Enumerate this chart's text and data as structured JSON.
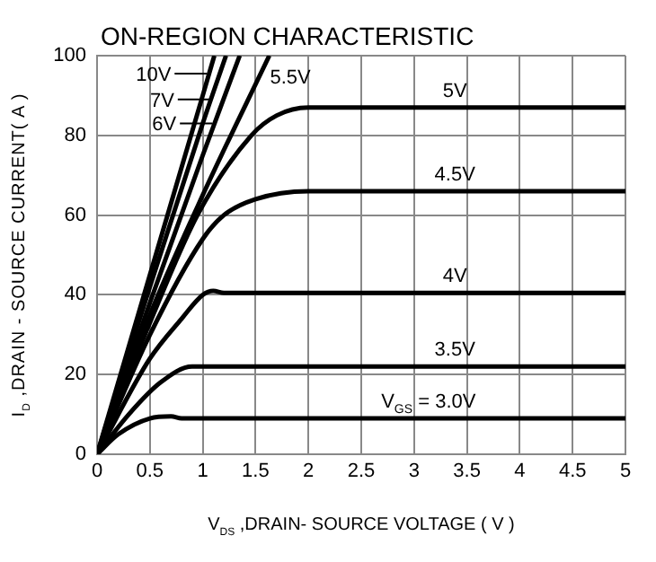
{
  "chart_data": {
    "type": "line",
    "title": "ON-REGION CHARACTERISTIC",
    "xlabel": "V$_{DS}$ ,DRAIN- SOURCE VOLTAGE ( V )",
    "ylabel": "I$_{D}$ ,DRAIN - SOURCE CURRENT( A )",
    "xlim": [
      0,
      5
    ],
    "xticks": [
      0,
      0.5,
      1,
      1.5,
      2,
      2.5,
      3,
      3.5,
      4,
      4.5,
      5
    ],
    "ylim": [
      0,
      100
    ],
    "yticks": [
      0,
      20,
      40,
      60,
      80,
      100
    ],
    "grid": true,
    "legend": false,
    "marker": "none",
    "line_style": "solid",
    "series": [
      {
        "color": "#000000",
        "x": [
          0,
          0.5,
          1,
          1.11
        ],
        "values": [
          0,
          45,
          90,
          100
        ]
      },
      {
        "color": "#000000",
        "x": [
          0,
          0.5,
          1,
          1.22
        ],
        "values": [
          0,
          42,
          83,
          100
        ]
      },
      {
        "color": "#000000",
        "x": [
          0,
          0.5,
          1,
          1.35
        ],
        "values": [
          0,
          38,
          75,
          100
        ]
      },
      {
        "color": "#000000",
        "x": [
          0,
          0.5,
          1,
          1.63
        ],
        "values": [
          0,
          35,
          65,
          100
        ]
      },
      {
        "color": "#000000",
        "x": [
          0,
          0.5,
          0.95,
          1.46,
          1.7,
          2,
          5
        ],
        "values": [
          0,
          33,
          60,
          80,
          85,
          87,
          87
        ]
      },
      {
        "color": "#000000",
        "x": [
          0,
          0.5,
          1,
          1.2,
          1.5,
          2,
          5
        ],
        "values": [
          0,
          30,
          54,
          60,
          64,
          66,
          66
        ]
      },
      {
        "color": "#000000",
        "x": [
          0,
          0.5,
          0.8,
          1,
          1.1,
          1.2,
          5
        ],
        "values": [
          0,
          24,
          34,
          40,
          41,
          40.5,
          40.5
        ]
      },
      {
        "color": "#000000",
        "x": [
          0,
          0.3,
          0.6,
          0.9,
          5
        ],
        "values": [
          0,
          10,
          18,
          22,
          22
        ]
      },
      {
        "color": "#000000",
        "x": [
          0,
          0.2,
          0.5,
          0.7,
          0.8,
          5
        ],
        "values": [
          0,
          5,
          9,
          9.5,
          9,
          9
        ]
      }
    ],
    "annotations": [
      {
        "text": "10V",
        "x": 1.04,
        "y": 95.5
      },
      {
        "text": "7V",
        "x": 1.07,
        "y": 89
      },
      {
        "text": "6V",
        "x": 1.09,
        "y": 83
      },
      {
        "text": "5.5V",
        "x": 1.5,
        "y": 93
      },
      {
        "text": "5V",
        "x": 3.25,
        "y": 87
      },
      {
        "text": "4.5V",
        "x": 3.25,
        "y": 66
      },
      {
        "text": "4V",
        "x": 3.25,
        "y": 40.5
      },
      {
        "text": "3.5V",
        "x": 3.25,
        "y": 22
      },
      {
        "text": "V$_{GS}$ = 3.0V",
        "x": 3.0,
        "y": 9
      }
    ]
  }
}
